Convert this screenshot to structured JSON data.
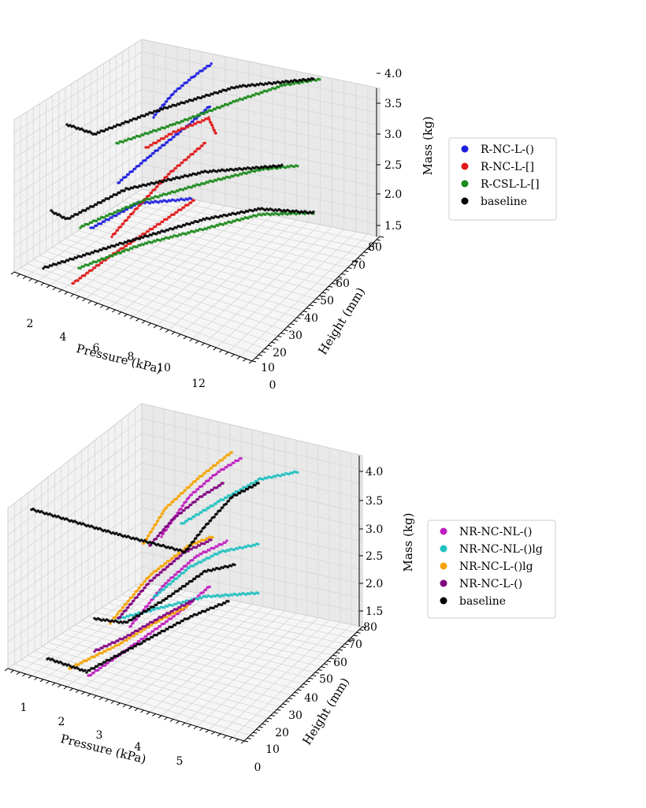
{
  "chart_data": [
    {
      "type": "scatter",
      "title": "",
      "xlabel": "Pressure (kPa)",
      "ylabel": "Height (mm)",
      "zlabel": "Mass (kg)",
      "xticks": [
        "2",
        "4",
        "6",
        "8",
        "10",
        "12"
      ],
      "yticks": [
        "0",
        "10",
        "20",
        "30",
        "40",
        "50",
        "60",
        "70",
        "80"
      ],
      "zticks": [
        "1.5",
        "2.0",
        "2.5",
        "3.0",
        "3.5",
        "4.0"
      ],
      "legend_position": "right",
      "series": [
        {
          "name": "R-NC-L-()",
          "color": "#1f1fe0",
          "masses": [
            1.5,
            2.5,
            3.5
          ],
          "curves": [
            {
              "seg": [
                [
                  115,
                  290
                ],
                [
                  175,
                  258
                ],
                [
                  245,
                  252
                ]
              ]
            },
            {
              "seg": [
                [
                  150,
                  232
                ],
                [
                  190,
                  198
                ],
                [
                  240,
                  158
                ],
                [
                  268,
                  133
                ]
              ]
            },
            {
              "seg": [
                [
                  195,
                  148
                ],
                [
                  220,
                  118
                ],
                [
                  248,
                  95
                ],
                [
                  270,
                  80
                ]
              ]
            }
          ]
        },
        {
          "name": "R-NC-L-[]",
          "color": "#e01a1a",
          "masses": [
            1.5,
            2.5,
            3.5
          ],
          "curves": [
            {
              "seg": [
                [
                  92,
                  360
                ],
                [
                  140,
                  325
                ],
                [
                  205,
                  282
                ],
                [
                  248,
                  253
                ]
              ]
            },
            {
              "seg": [
                [
                  142,
                  300
                ],
                [
                  170,
                  268
                ],
                [
                  215,
                  220
                ],
                [
                  262,
                  180
                ]
              ]
            },
            {
              "seg": [
                [
                  185,
                  188
                ],
                [
                  220,
                  168
                ],
                [
                  265,
                  150
                ],
                [
                  275,
                  172
                ]
              ]
            }
          ]
        },
        {
          "name": "R-CSL-L-[]",
          "color": "#1a8a1a",
          "masses": [
            1.5,
            2.5,
            3.5
          ],
          "curves": [
            {
              "seg": [
                [
                  100,
                  340
                ],
                [
                  180,
                  310
                ],
                [
                  260,
                  290
                ],
                [
                  330,
                  272
                ],
                [
                  400,
                  270
                ]
              ]
            },
            {
              "seg": [
                [
                  102,
                  288
                ],
                [
                  180,
                  255
                ],
                [
                  260,
                  232
                ],
                [
                  330,
                  215
                ],
                [
                  380,
                  210
                ]
              ]
            },
            {
              "seg": [
                [
                  148,
                  182
                ],
                [
                  220,
                  158
                ],
                [
                  300,
                  128
                ],
                [
                  360,
                  108
                ],
                [
                  408,
                  100
                ]
              ]
            }
          ]
        },
        {
          "name": "baseline",
          "color": "#000000",
          "masses": [
            1.5,
            2.5,
            3.5
          ],
          "curves": [
            {
              "seg": [
                [
                  55,
                  340
                ],
                [
                  150,
                  310
                ],
                [
                  260,
                  278
                ],
                [
                  330,
                  265
                ],
                [
                  400,
                  270
                ]
              ]
            },
            {
              "seg": [
                [
                  65,
                  268
                ],
                [
                  85,
                  278
                ],
                [
                  160,
                  240
                ],
                [
                  260,
                  218
                ],
                [
                  360,
                  210
                ]
              ]
            },
            {
              "seg": [
                [
                  85,
                  158
                ],
                [
                  120,
                  170
                ],
                [
                  200,
                  140
                ],
                [
                  300,
                  110
                ],
                [
                  400,
                  100
                ]
              ]
            }
          ]
        }
      ]
    },
    {
      "type": "scatter",
      "title": "",
      "xlabel": "Pressure (kPa)",
      "ylabel": "Height (mm)",
      "zlabel": "Mass (kg)",
      "xticks": [
        "1",
        "2",
        "3",
        "4",
        "5"
      ],
      "yticks": [
        "0",
        "10",
        "20",
        "30",
        "40",
        "50",
        "60",
        "70",
        "80"
      ],
      "zticks": [
        "1.5",
        "2.0",
        "2.5",
        "3.0",
        "3.5",
        "4.0"
      ],
      "legend_position": "right",
      "series": [
        {
          "name": "NR-NC-NL-()",
          "color": "#c020c0",
          "masses": [
            1.5,
            2.5,
            3.5
          ],
          "curves": [
            {
              "seg": [
                [
                  112,
                  858
                ],
                [
                  170,
                  818
                ],
                [
                  230,
                  775
                ],
                [
                  268,
                  742
                ]
              ]
            },
            {
              "seg": [
                [
                  165,
                  795
                ],
                [
                  210,
                  740
                ],
                [
                  250,
                  705
                ],
                [
                  290,
                  686
                ]
              ]
            },
            {
              "seg": [
                [
                  205,
                  680
                ],
                [
                  240,
                  630
                ],
                [
                  275,
                  600
                ],
                [
                  308,
                  580
                ]
              ]
            }
          ]
        },
        {
          "name": "NR-NC-NL-()lg",
          "color": "#20c0c0",
          "masses": [
            1.5,
            2.5,
            3.5
          ],
          "curves": [
            {
              "seg": [
                [
                  150,
                  785
                ],
                [
                  200,
                  772
                ],
                [
                  260,
                  757
                ],
                [
                  330,
                  752
                ]
              ]
            },
            {
              "seg": [
                [
                  195,
                  758
                ],
                [
                  240,
                  720
                ],
                [
                  280,
                  700
                ],
                [
                  330,
                  690
                ]
              ]
            },
            {
              "seg": [
                [
                  230,
                  665
                ],
                [
                  280,
                  635
                ],
                [
                  330,
                  608
                ],
                [
                  380,
                  598
                ]
              ]
            }
          ]
        },
        {
          "name": "NR-NC-L-()lg",
          "color": "#f5a400",
          "masses": [
            1.5,
            2.5,
            3.5
          ],
          "curves": [
            {
              "seg": [
                [
                  88,
                  848
                ],
                [
                  150,
                  818
                ],
                [
                  200,
                  788
                ],
                [
                  240,
                  768
                ]
              ]
            },
            {
              "seg": [
                [
                  140,
                  790
                ],
                [
                  190,
                  730
                ],
                [
                  240,
                  692
                ],
                [
                  272,
                  680
                ]
              ]
            },
            {
              "seg": [
                [
                  182,
                  690
                ],
                [
                  210,
                  645
                ],
                [
                  250,
                  608
                ],
                [
                  296,
                  572
                ]
              ]
            }
          ]
        },
        {
          "name": "NR-NC-L-()",
          "color": "#800080",
          "masses": [
            1.5,
            2.5,
            3.5
          ],
          "curves": [
            {
              "seg": [
                [
                  120,
                  826
                ],
                [
                  160,
                  808
                ],
                [
                  200,
                  785
                ],
                [
                  248,
                  760
                ]
              ]
            },
            {
              "seg": [
                [
                  150,
                  785
                ],
                [
                  190,
                  738
                ],
                [
                  235,
                  700
                ],
                [
                  270,
                  684
                ]
              ]
            },
            {
              "seg": [
                [
                  190,
                  692
                ],
                [
                  220,
                  658
                ],
                [
                  255,
                  630
                ],
                [
                  285,
                  612
                ]
              ]
            }
          ]
        },
        {
          "name": "baseline",
          "color": "#000000",
          "masses": [
            1.5,
            2.5,
            3.5
          ],
          "curves": [
            {
              "seg": [
                [
                  60,
                  835
                ],
                [
                  110,
                  852
                ],
                [
                  180,
                  815
                ],
                [
                  240,
                  783
                ],
                [
                  292,
                  762
                ]
              ]
            },
            {
              "seg": [
                [
                  120,
                  785
                ],
                [
                  160,
                  790
                ],
                [
                  210,
                  760
                ],
                [
                  260,
                  725
                ],
                [
                  300,
                  716
                ]
              ]
            },
            {
              "seg": [
                [
                  40,
                  646
                ],
                [
                  150,
                  678
                ],
                [
                  205,
                  692
                ],
                [
                  235,
                  700
                ],
                [
                  260,
                  668
                ],
                [
                  295,
                  630
                ],
                [
                  330,
                  612
                ]
              ]
            }
          ]
        }
      ]
    }
  ]
}
